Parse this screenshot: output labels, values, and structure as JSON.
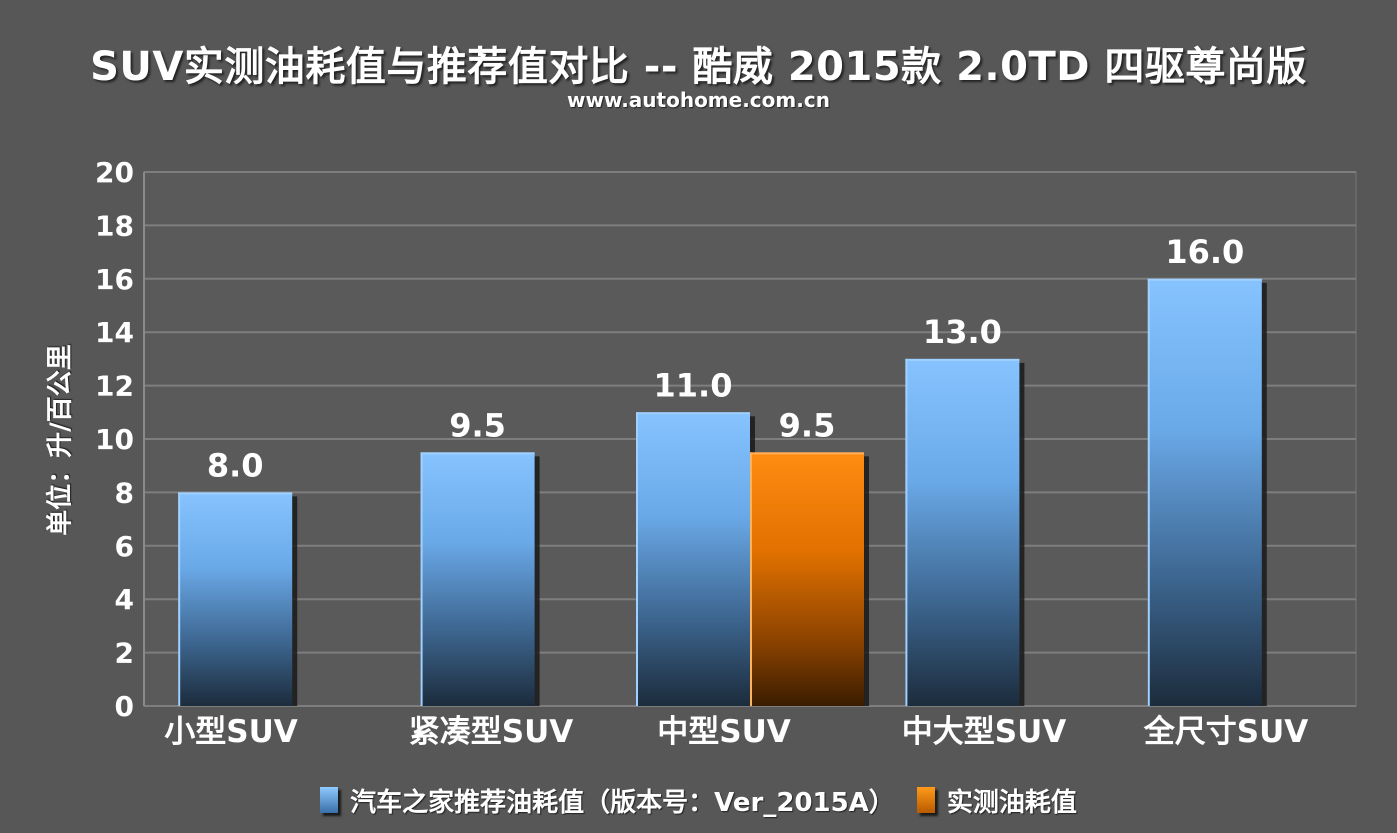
{
  "chart_data": {
    "type": "bar",
    "title": "SUV实测油耗值与推荐值对比 -- 酷威 2015款 2.0TD 四驱尊尚版",
    "subtitle": "www.autohome.com.cn",
    "ylabel": "单位：升/百公里",
    "ylim": [
      0,
      20
    ],
    "yticks": [
      0,
      2,
      4,
      6,
      8,
      10,
      12,
      14,
      16,
      18,
      20
    ],
    "grid": true,
    "legend_position": "bottom",
    "categories": [
      "小型SUV",
      "紧凑型SUV",
      "中型SUV",
      "中大型SUV",
      "全尺寸SUV"
    ],
    "series": [
      {
        "name": "汽车之家推荐油耗值（版本号：Ver_2015A）",
        "color": "#6fb4ff",
        "values": [
          8.0,
          9.5,
          11.0,
          13.0,
          16.0
        ],
        "labels": [
          "8.0",
          "9.5",
          "11.0",
          "13.0",
          "16.0"
        ]
      },
      {
        "name": "实测油耗值",
        "color": "#ff8a10",
        "values": [
          null,
          null,
          9.5,
          null,
          null
        ],
        "labels": [
          null,
          null,
          "9.5",
          null,
          null
        ]
      }
    ]
  }
}
